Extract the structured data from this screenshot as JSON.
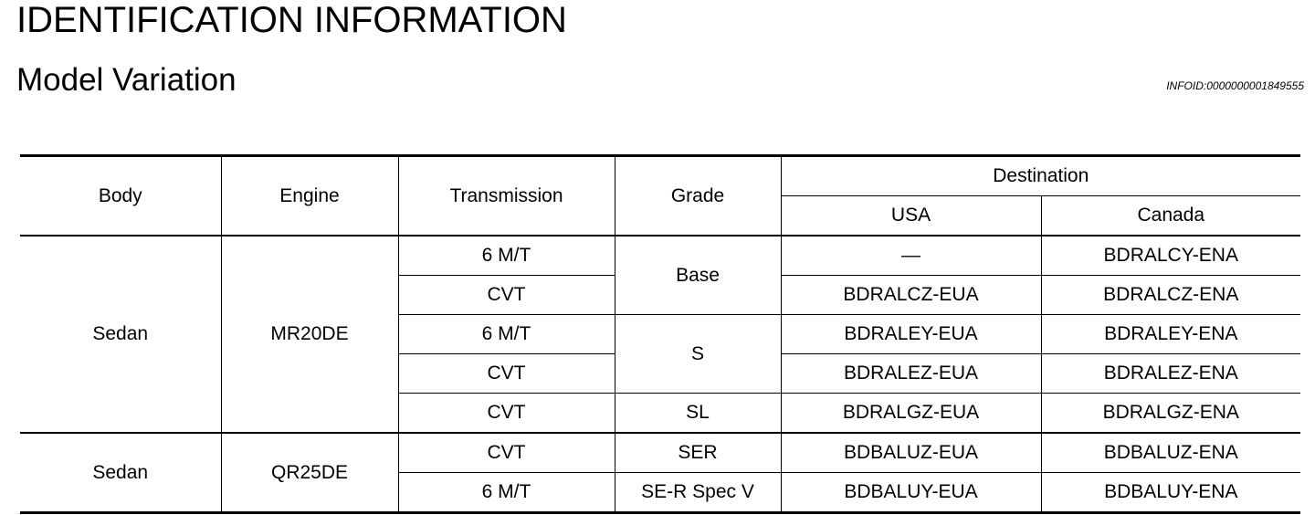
{
  "header": {
    "title": "IDENTIFICATION INFORMATION",
    "subtitle": "Model Variation",
    "info_id": "INFOID:0000000001849555"
  },
  "table": {
    "headers": {
      "body": "Body",
      "engine": "Engine",
      "transmission": "Transmission",
      "grade": "Grade",
      "destination": "Destination",
      "usa": "USA",
      "canada": "Canada"
    },
    "groups": [
      {
        "body": "Sedan",
        "engine": "MR20DE",
        "grades": [
          {
            "grade": "Base",
            "rows": [
              {
                "transmission": "6 M/T",
                "usa": "—",
                "canada": "BDRALCY-ENA"
              },
              {
                "transmission": "CVT",
                "usa": "BDRALCZ-EUA",
                "canada": "BDRALCZ-ENA"
              }
            ]
          },
          {
            "grade": "S",
            "rows": [
              {
                "transmission": "6 M/T",
                "usa": "BDRALEY-EUA",
                "canada": "BDRALEY-ENA"
              },
              {
                "transmission": "CVT",
                "usa": "BDRALEZ-EUA",
                "canada": "BDRALEZ-ENA"
              }
            ]
          },
          {
            "grade": "SL",
            "rows": [
              {
                "transmission": "CVT",
                "usa": "BDRALGZ-EUA",
                "canada": "BDRALGZ-ENA"
              }
            ]
          }
        ]
      },
      {
        "body": "Sedan",
        "engine": "QR25DE",
        "grades": [
          {
            "grade": "SER",
            "rows": [
              {
                "transmission": "CVT",
                "usa": "BDBALUZ-EUA",
                "canada": "BDBALUZ-ENA"
              }
            ]
          },
          {
            "grade": "SE-R Spec V",
            "rows": [
              {
                "transmission": "6 M/T",
                "usa": "BDBALUY-EUA",
                "canada": "BDBALUY-ENA"
              }
            ]
          }
        ]
      }
    ]
  }
}
